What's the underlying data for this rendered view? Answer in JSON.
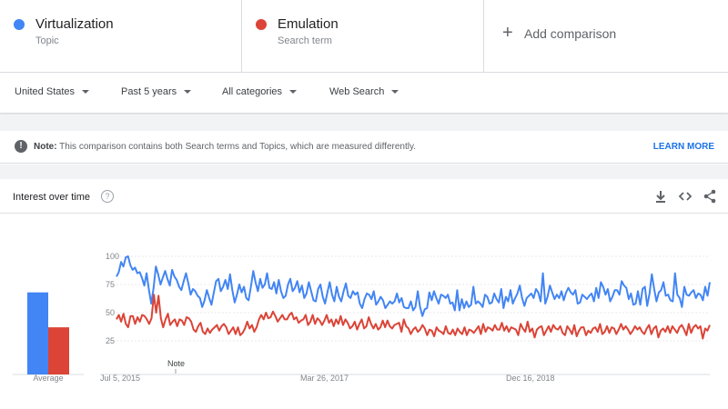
{
  "terms": [
    {
      "name": "Virtualization",
      "type": "Topic",
      "color": "#4285f4"
    },
    {
      "name": "Emulation",
      "type": "Search term",
      "color": "#db4437"
    }
  ],
  "add_comparison": {
    "plus": "+",
    "label": "Add comparison"
  },
  "filters": {
    "region": "United States",
    "period": "Past 5 years",
    "category": "All categories",
    "search_type": "Web Search"
  },
  "note": {
    "icon": "!",
    "bold": "Note:",
    "text": " This comparison contains both Search terms and Topics, which are measured differently.",
    "link": "LEARN MORE"
  },
  "card": {
    "title": "Interest over time",
    "help": "?",
    "tools": [
      "download-icon",
      "embed-icon",
      "share-icon"
    ]
  },
  "chart_data": {
    "type": "line",
    "y_ticks": [
      100,
      75,
      50,
      25
    ],
    "ylim": [
      0,
      100
    ],
    "x_tick_labels": [
      "Jul 5, 2015",
      "Mar 26, 2017",
      "Dec 16, 2018"
    ],
    "annotation": "Note",
    "averages": {
      "label": "Average",
      "values": [
        68,
        37
      ]
    },
    "series": [
      {
        "name": "Virtualization",
        "color": "#4285f4",
        "values": [
          82,
          86,
          95,
          91,
          99,
          100,
          92,
          88,
          90,
          85,
          86,
          81,
          74,
          85,
          70,
          58,
          72,
          91,
          84,
          75,
          81,
          87,
          80,
          74,
          88,
          82,
          79,
          73,
          70,
          78,
          85,
          76,
          66,
          71,
          69,
          65,
          63,
          55,
          61,
          70,
          63,
          57,
          68,
          78,
          80,
          69,
          73,
          79,
          71,
          84,
          70,
          59,
          66,
          75,
          68,
          73,
          63,
          61,
          73,
          87,
          77,
          69,
          80,
          72,
          75,
          85,
          72,
          71,
          77,
          67,
          79,
          69,
          63,
          65,
          75,
          80,
          69,
          72,
          78,
          68,
          74,
          63,
          67,
          77,
          69,
          61,
          60,
          71,
          75,
          64,
          58,
          68,
          77,
          66,
          60,
          73,
          64,
          60,
          69,
          76,
          65,
          63,
          69,
          66,
          68,
          58,
          54,
          62,
          67,
          66,
          62,
          69,
          57,
          60,
          64,
          61,
          54,
          57,
          60,
          58,
          60,
          67,
          59,
          63,
          55,
          54,
          54,
          60,
          52,
          55,
          69,
          55,
          47,
          53,
          54,
          68,
          61,
          69,
          63,
          58,
          66,
          65,
          63,
          66,
          58,
          59,
          52,
          70,
          52,
          62,
          54,
          60,
          55,
          57,
          73,
          58,
          60,
          58,
          55,
          66,
          64,
          58,
          59,
          67,
          62,
          59,
          71,
          54,
          64,
          60,
          70,
          58,
          63,
          67,
          74,
          63,
          56,
          63,
          65,
          67,
          63,
          71,
          68,
          60,
          85,
          58,
          64,
          74,
          68,
          62,
          66,
          63,
          69,
          61,
          68,
          72,
          68,
          66,
          70,
          58,
          59,
          66,
          64,
          62,
          65,
          67,
          60,
          72,
          63,
          77,
          73,
          66,
          71,
          60,
          64,
          70,
          70,
          66,
          78,
          74,
          72,
          62,
          67,
          57,
          58,
          69,
          57,
          71,
          73,
          56,
          67,
          84,
          71,
          60,
          68,
          70,
          77,
          65,
          66,
          61,
          60,
          85,
          66,
          63,
          55,
          73,
          66,
          65,
          68,
          70,
          63,
          67,
          66,
          61,
          73,
          65,
          77
        ]
      },
      {
        "name": "Emulation",
        "color": "#db4437",
        "values": [
          44,
          48,
          42,
          49,
          40,
          37,
          47,
          47,
          40,
          46,
          42,
          48,
          47,
          44,
          40,
          45,
          66,
          50,
          65,
          45,
          37,
          44,
          49,
          39,
          42,
          44,
          38,
          44,
          43,
          39,
          46,
          45,
          42,
          35,
          33,
          38,
          41,
          33,
          31,
          36,
          32,
          35,
          37,
          39,
          34,
          38,
          40,
          37,
          31,
          34,
          37,
          31,
          37,
          30,
          32,
          36,
          42,
          36,
          39,
          33,
          37,
          44,
          48,
          44,
          50,
          45,
          46,
          51,
          47,
          42,
          45,
          48,
          44,
          44,
          48,
          50,
          44,
          46,
          41,
          43,
          44,
          48,
          39,
          42,
          48,
          40,
          45,
          43,
          39,
          43,
          48,
          41,
          44,
          38,
          44,
          40,
          47,
          39,
          44,
          41,
          36,
          38,
          42,
          35,
          40,
          44,
          36,
          38,
          46,
          40,
          36,
          40,
          35,
          37,
          43,
          37,
          43,
          38,
          36,
          39,
          40,
          41,
          33,
          44,
          38,
          36,
          31,
          35,
          37,
          33,
          35,
          39,
          36,
          30,
          35,
          34,
          29,
          37,
          34,
          33,
          31,
          38,
          32,
          31,
          35,
          30,
          36,
          33,
          31,
          37,
          30,
          35,
          34,
          32,
          35,
          38,
          31,
          40,
          33,
          37,
          36,
          34,
          39,
          35,
          35,
          41,
          34,
          38,
          33,
          37,
          36,
          35,
          30,
          40,
          36,
          33,
          42,
          33,
          36,
          28,
          35,
          37,
          38,
          30,
          34,
          38,
          33,
          39,
          36,
          35,
          38,
          32,
          30,
          38,
          35,
          31,
          39,
          29,
          34,
          37,
          37,
          30,
          34,
          32,
          36,
          37,
          33,
          40,
          31,
          33,
          38,
          32,
          37,
          36,
          31,
          35,
          40,
          35,
          38,
          35,
          31,
          34,
          38,
          35,
          37,
          33,
          31,
          36,
          39,
          31,
          36,
          38,
          28,
          34,
          36,
          33,
          38,
          32,
          38,
          35,
          32,
          37,
          39,
          35,
          30,
          40,
          32,
          37,
          39,
          36,
          38,
          27,
          36,
          34,
          39
        ]
      }
    ]
  }
}
